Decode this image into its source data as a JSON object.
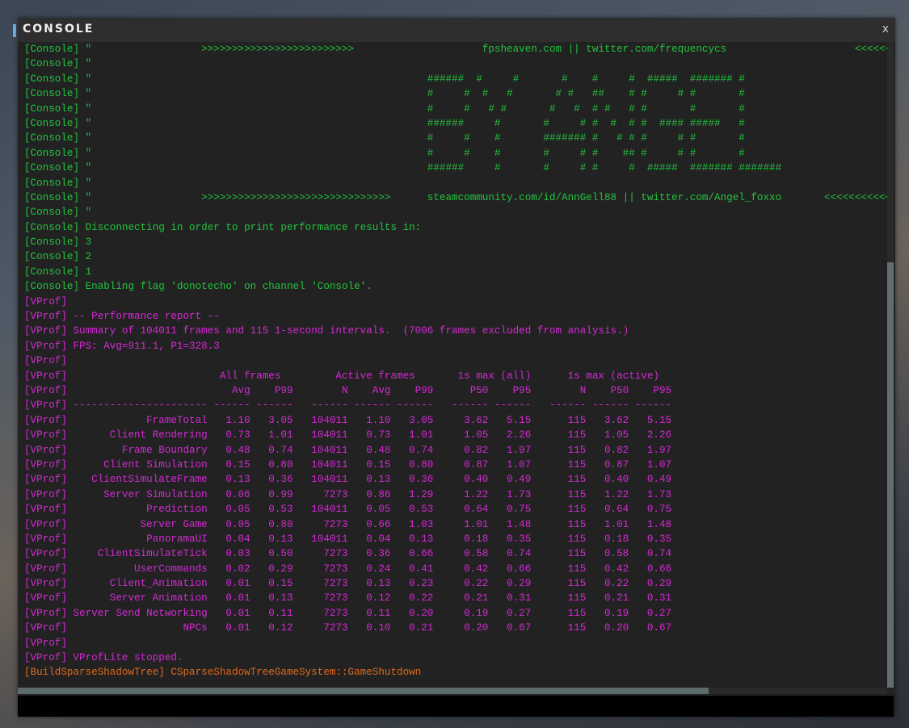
{
  "window": {
    "title": "CONSOLE",
    "close_label": "x"
  },
  "colors": {
    "console": "#22c43e",
    "vprof": "#d42ad4",
    "shadow_tree": "#e0691c",
    "background": "#222222"
  },
  "log_before": [
    {
      "tag": "[Console]",
      "channel": "console",
      "msg": " \"                  >>>>>>>>>>>>>>>>>>>>>>>>>                     fpsheaven.com || twitter.com/frequencycs                     <<<<<<<<<<<<<<<<<<<<<<<<<"
    },
    {
      "tag": "[Console]",
      "channel": "console",
      "msg": " \""
    },
    {
      "tag": "[Console]",
      "channel": "console",
      "msg": " \"                                                       ######  #     #       #    #     #  #####  ####### #"
    },
    {
      "tag": "[Console]",
      "channel": "console",
      "msg": " \"                                                       #     #  #   #       # #   ##    # #     # #       #"
    },
    {
      "tag": "[Console]",
      "channel": "console",
      "msg": " \"                                                       #     #   # #       #   #  # #   # #       #       #"
    },
    {
      "tag": "[Console]",
      "channel": "console",
      "msg": " \"                                                       ######     #       #     # #  #  # #  #### #####   #"
    },
    {
      "tag": "[Console]",
      "channel": "console",
      "msg": " \"                                                       #     #    #       ####### #   # # #     # #       #"
    },
    {
      "tag": "[Console]",
      "channel": "console",
      "msg": " \"                                                       #     #    #       #     # #    ## #     # #       #"
    },
    {
      "tag": "[Console]",
      "channel": "console",
      "msg": " \"                                                       ######     #       #     # #     #  #####  ####### #######"
    },
    {
      "tag": "[Console]",
      "channel": "console",
      "msg": " \""
    },
    {
      "tag": "[Console]",
      "channel": "console",
      "msg": " \"                  >>>>>>>>>>>>>>>>>>>>>>>>>>>>>>>      steamcommunity.com/id/AnnGell88 || twitter.com/Angel_foxxo       <<<<<<<<<<<<<<<<<<<<<<<<<<<<<<<"
    },
    {
      "tag": "[Console]",
      "channel": "console",
      "msg": " \""
    },
    {
      "tag": "[Console]",
      "channel": "console",
      "msg": " Disconnecting in order to print performance results in:"
    },
    {
      "tag": "[Console]",
      "channel": "console",
      "msg": " 3"
    },
    {
      "tag": "[Console]",
      "channel": "console",
      "msg": " 2"
    },
    {
      "tag": "[Console]",
      "channel": "console",
      "msg": " 1"
    },
    {
      "tag": "[Console]",
      "channel": "console",
      "msg": " Enabling flag 'donotecho' on channel 'Console'."
    },
    {
      "tag": "[VProf]",
      "channel": "vprof",
      "msg": ""
    },
    {
      "tag": "[VProf]",
      "channel": "vprof",
      "msg": " -- Performance report --"
    },
    {
      "tag": "[VProf]",
      "channel": "vprof",
      "msg": " Summary of 104011 frames and 115 1-second intervals.  (7006 frames excluded from analysis.)"
    },
    {
      "tag": "[VProf]",
      "channel": "vprof",
      "msg": " FPS: Avg=911.1, P1=328.3"
    },
    {
      "tag": "[VProf]",
      "channel": "vprof",
      "msg": ""
    }
  ],
  "vprof_table": {
    "tag": "[VProf]",
    "groups": [
      "All frames",
      "Active frames",
      "1s max (all)",
      "1s max (active)"
    ],
    "columns": [
      "Avg",
      "P99",
      "N",
      "Avg",
      "P99",
      "P50",
      "P95",
      "N",
      "P50",
      "P95"
    ],
    "rows": [
      {
        "name": "FrameTotal",
        "values": [
          "1.10",
          "3.05",
          "104011",
          "1.10",
          "3.05",
          "3.62",
          "5.15",
          "115",
          "3.62",
          "5.15"
        ]
      },
      {
        "name": "Client Rendering",
        "values": [
          "0.73",
          "1.01",
          "104011",
          "0.73",
          "1.01",
          "1.05",
          "2.26",
          "115",
          "1.05",
          "2.26"
        ]
      },
      {
        "name": "Frame Boundary",
        "values": [
          "0.48",
          "0.74",
          "104011",
          "0.48",
          "0.74",
          "0.82",
          "1.97",
          "115",
          "0.82",
          "1.97"
        ]
      },
      {
        "name": "Client Simulation",
        "values": [
          "0.15",
          "0.80",
          "104011",
          "0.15",
          "0.80",
          "0.87",
          "1.07",
          "115",
          "0.87",
          "1.07"
        ]
      },
      {
        "name": "ClientSimulateFrame",
        "values": [
          "0.13",
          "0.36",
          "104011",
          "0.13",
          "0.36",
          "0.40",
          "0.49",
          "115",
          "0.40",
          "0.49"
        ]
      },
      {
        "name": "Server Simulation",
        "values": [
          "0.06",
          "0.99",
          "7273",
          "0.86",
          "1.29",
          "1.22",
          "1.73",
          "115",
          "1.22",
          "1.73"
        ]
      },
      {
        "name": "Prediction",
        "values": [
          "0.05",
          "0.53",
          "104011",
          "0.05",
          "0.53",
          "0.64",
          "0.75",
          "115",
          "0.64",
          "0.75"
        ]
      },
      {
        "name": "Server Game",
        "values": [
          "0.05",
          "0.80",
          "7273",
          "0.66",
          "1.03",
          "1.01",
          "1.48",
          "115",
          "1.01",
          "1.48"
        ]
      },
      {
        "name": "PanoramaUI",
        "values": [
          "0.04",
          "0.13",
          "104011",
          "0.04",
          "0.13",
          "0.18",
          "0.35",
          "115",
          "0.18",
          "0.35"
        ]
      },
      {
        "name": "ClientSimulateTick",
        "values": [
          "0.03",
          "0.50",
          "7273",
          "0.36",
          "0.66",
          "0.58",
          "0.74",
          "115",
          "0.58",
          "0.74"
        ]
      },
      {
        "name": "UserCommands",
        "values": [
          "0.02",
          "0.29",
          "7273",
          "0.24",
          "0.41",
          "0.42",
          "0.66",
          "115",
          "0.42",
          "0.66"
        ]
      },
      {
        "name": "Client_Animation",
        "values": [
          "0.01",
          "0.15",
          "7273",
          "0.13",
          "0.23",
          "0.22",
          "0.29",
          "115",
          "0.22",
          "0.29"
        ]
      },
      {
        "name": "Server Animation",
        "values": [
          "0.01",
          "0.13",
          "7273",
          "0.12",
          "0.22",
          "0.21",
          "0.31",
          "115",
          "0.21",
          "0.31"
        ]
      },
      {
        "name": "Server Send Networking",
        "values": [
          "0.01",
          "0.11",
          "7273",
          "0.11",
          "0.20",
          "0.19",
          "0.27",
          "115",
          "0.19",
          "0.27"
        ]
      },
      {
        "name": "NPCs",
        "values": [
          "0.01",
          "0.12",
          "7273",
          "0.10",
          "0.21",
          "0.20",
          "0.67",
          "115",
          "0.20",
          "0.67"
        ]
      }
    ]
  },
  "log_after": [
    {
      "tag": "[VProf]",
      "channel": "vprof",
      "msg": ""
    },
    {
      "tag": "[VProf]",
      "channel": "vprof",
      "msg": " VProfLite stopped."
    },
    {
      "tag": "[BuildSparseShadowTree]",
      "channel": "shadow",
      "msg": " CSparseShadowTreeGameSystem::GameShutdown"
    }
  ],
  "command_input": {
    "value": "",
    "placeholder": ""
  }
}
